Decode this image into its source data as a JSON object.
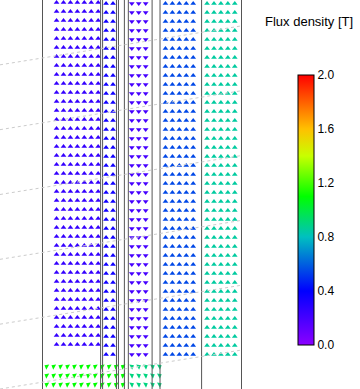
{
  "chart_data": {
    "type": "vector_field",
    "tick_labels": false,
    "xlim": [
      40,
      240
    ],
    "ylim": [
      0,
      389
    ],
    "regions": [
      {
        "x": [
          50,
          97
        ],
        "y": [
          40,
          389
        ],
        "flux_density": 0.25,
        "angle": 0
      },
      {
        "x": [
          100,
          114
        ],
        "y": [
          30,
          389
        ],
        "flux_density": 0.35,
        "angle": 0
      },
      {
        "x": [
          126,
          148
        ],
        "y": [
          30,
          389
        ],
        "flux_density": 0.2,
        "angle": 180
      },
      {
        "x": [
          160,
          198
        ],
        "y": [
          30,
          389
        ],
        "flux_density": 0.55,
        "angle": 0
      },
      {
        "x": [
          202,
          238
        ],
        "y": [
          30,
          389
        ],
        "flux_density": 0.85,
        "angle": 0
      },
      {
        "x": [
          40,
          125
        ],
        "y": [
          0,
          30
        ],
        "flux_density": 1.1,
        "angle": 300
      },
      {
        "x": [
          126,
          160
        ],
        "y": [
          0,
          25
        ],
        "flux_density": 0.9,
        "angle": 60
      }
    ],
    "colorbar": {
      "title": "Flux density [T]",
      "range": [
        0,
        2
      ],
      "ticks": [
        {
          "value": 0,
          "label": "0.0"
        },
        {
          "value": 0.4,
          "label": "0.4"
        },
        {
          "value": 0.8,
          "label": "0.8"
        },
        {
          "value": 1.2,
          "label": "1.2"
        },
        {
          "value": 1.6,
          "label": "1.6"
        },
        {
          "value": 2,
          "label": "2.0"
        }
      ]
    }
  }
}
